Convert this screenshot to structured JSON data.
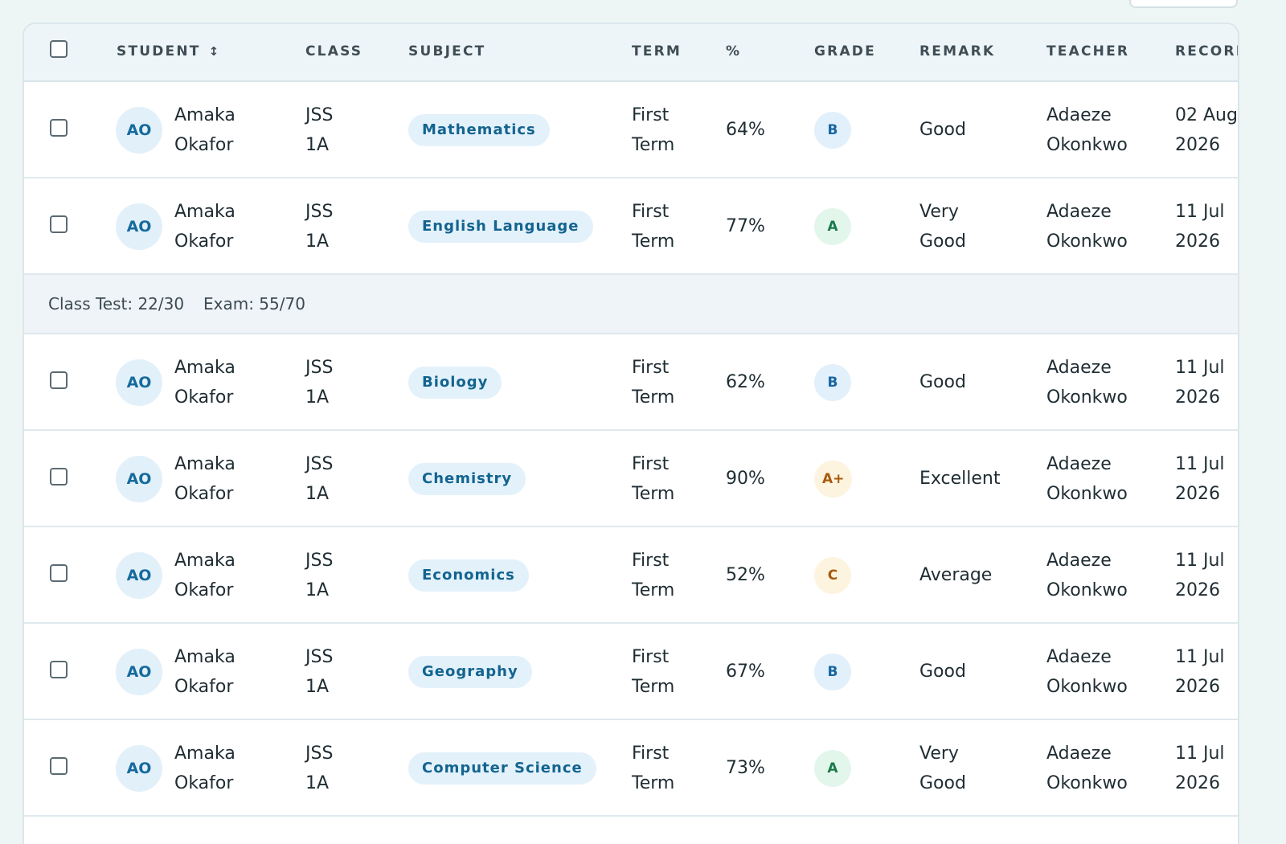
{
  "headers": {
    "student": "STUDENT",
    "class": "CLASS",
    "subject": "SUBJECT",
    "term": "TERM",
    "percent": "%",
    "grade": "GRADE",
    "remark": "REMARK",
    "teacher": "TEACHER",
    "recorded": "RECORD"
  },
  "icons": {
    "sort": "sort-updown-icon"
  },
  "colors": {
    "grade_blue": "#1766a0",
    "grade_green": "#1b7a4a",
    "grade_amber": "#a85a0c",
    "pill_text": "#13648f"
  },
  "rows": [
    {
      "initials": "AO",
      "first": "Amaka",
      "last": "Okafor",
      "class1": "JSS",
      "class2": "1A",
      "subject": "Mathematics",
      "term1": "First",
      "term2": "Term",
      "percent": "64%",
      "grade": "B",
      "remark1": "Good",
      "remark2": "",
      "teacher1": "Adaeze",
      "teacher2": "Okonkwo",
      "date1": "02 Aug",
      "date2": "2026"
    },
    {
      "initials": "AO",
      "first": "Amaka",
      "last": "Okafor",
      "class1": "JSS",
      "class2": "1A",
      "subject": "English Language",
      "term1": "First",
      "term2": "Term",
      "percent": "77%",
      "grade": "A",
      "remark1": "Very",
      "remark2": "Good",
      "teacher1": "Adaeze",
      "teacher2": "Okonkwo",
      "date1": "11 Jul",
      "date2": "2026"
    },
    {
      "initials": "AO",
      "first": "Amaka",
      "last": "Okafor",
      "class1": "JSS",
      "class2": "1A",
      "subject": "Biology",
      "term1": "First",
      "term2": "Term",
      "percent": "62%",
      "grade": "B",
      "remark1": "Good",
      "remark2": "",
      "teacher1": "Adaeze",
      "teacher2": "Okonkwo",
      "date1": "11 Jul",
      "date2": "2026"
    },
    {
      "initials": "AO",
      "first": "Amaka",
      "last": "Okafor",
      "class1": "JSS",
      "class2": "1A",
      "subject": "Chemistry",
      "term1": "First",
      "term2": "Term",
      "percent": "90%",
      "grade": "A+",
      "remark1": "Excellent",
      "remark2": "",
      "teacher1": "Adaeze",
      "teacher2": "Okonkwo",
      "date1": "11 Jul",
      "date2": "2026"
    },
    {
      "initials": "AO",
      "first": "Amaka",
      "last": "Okafor",
      "class1": "JSS",
      "class2": "1A",
      "subject": "Economics",
      "term1": "First",
      "term2": "Term",
      "percent": "52%",
      "grade": "C",
      "remark1": "Average",
      "remark2": "",
      "teacher1": "Adaeze",
      "teacher2": "Okonkwo",
      "date1": "11 Jul",
      "date2": "2026"
    },
    {
      "initials": "AO",
      "first": "Amaka",
      "last": "Okafor",
      "class1": "JSS",
      "class2": "1A",
      "subject": "Geography",
      "term1": "First",
      "term2": "Term",
      "percent": "67%",
      "grade": "B",
      "remark1": "Good",
      "remark2": "",
      "teacher1": "Adaeze",
      "teacher2": "Okonkwo",
      "date1": "11 Jul",
      "date2": "2026"
    },
    {
      "initials": "AO",
      "first": "Amaka",
      "last": "Okafor",
      "class1": "JSS",
      "class2": "1A",
      "subject": "Computer Science",
      "term1": "First",
      "term2": "Term",
      "percent": "73%",
      "grade": "A",
      "remark1": "Very",
      "remark2": "Good",
      "teacher1": "Adaeze",
      "teacher2": "Okonkwo",
      "date1": "11 Jul",
      "date2": "2026"
    }
  ],
  "detail": {
    "class_test": "Class Test: 22/30",
    "exam": "Exam: 55/70"
  }
}
